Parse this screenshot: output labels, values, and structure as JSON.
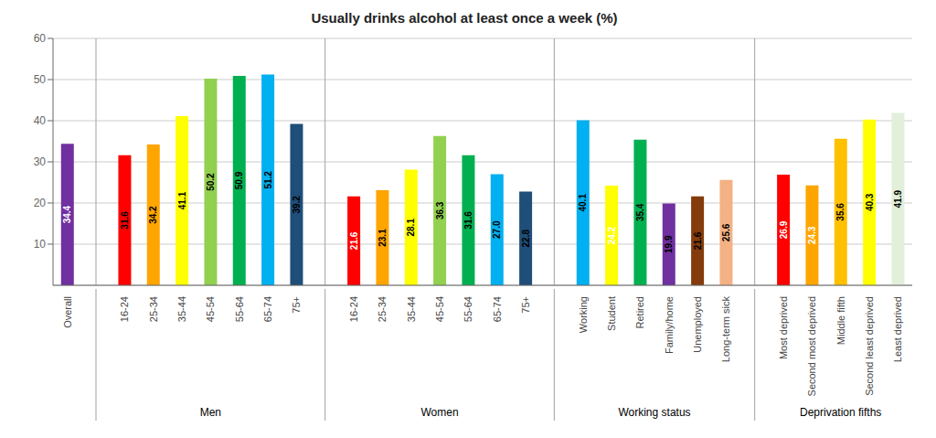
{
  "chart_data": {
    "type": "bar",
    "title": "Usually drinks alcohol at least once a week (%)",
    "groups": [
      {
        "label": null,
        "categories": [
          "Overall"
        ],
        "values": [
          34.4
        ],
        "colors": [
          "#7030A0"
        ]
      },
      {
        "label": "Men",
        "categories": [
          "16-24",
          "25-34",
          "35-44",
          "45-54",
          "55-64",
          "65-74",
          "75+"
        ],
        "values": [
          31.6,
          34.2,
          41.1,
          50.2,
          50.9,
          51.2,
          39.2
        ],
        "colors": [
          "#FF0000",
          "#FFA500",
          "#FFFF00",
          "#92D050",
          "#00B050",
          "#00B0F0",
          "#1F4E79"
        ]
      },
      {
        "label": "Women",
        "categories": [
          "16-24",
          "25-34",
          "35-44",
          "45-54",
          "55-64",
          "65-74",
          "75+"
        ],
        "values": [
          21.6,
          23.1,
          28.1,
          36.3,
          31.6,
          27.0,
          22.8
        ],
        "colors": [
          "#FF0000",
          "#FFA500",
          "#FFFF00",
          "#92D050",
          "#00B050",
          "#00B0F0",
          "#1F4E79"
        ]
      },
      {
        "label": "Working status",
        "categories": [
          "Working",
          "Student",
          "Retired",
          "Family/home",
          "Unemployed",
          "Long-term sick"
        ],
        "values": [
          40.1,
          24.2,
          35.4,
          19.9,
          21.6,
          25.6
        ],
        "colors": [
          "#00B0F0",
          "#FFFF00",
          "#00B050",
          "#7030A0",
          "#843C0C",
          "#F4B183"
        ]
      },
      {
        "label": "Deprivation fifths",
        "categories": [
          "Most deprived",
          "Second most deprived",
          "Middle fifth",
          "Second least deprived",
          "Least deprived"
        ],
        "values": [
          26.9,
          24.3,
          35.6,
          40.3,
          41.9
        ],
        "colors": [
          "#FF0000",
          "#FFA500",
          "#FFC000",
          "#FFFF00",
          "#E2EFDA"
        ]
      }
    ],
    "ylim": [
      0,
      60
    ],
    "yticks": [
      10,
      20,
      30,
      40,
      50,
      60
    ],
    "grid": true,
    "data_labels": true
  }
}
